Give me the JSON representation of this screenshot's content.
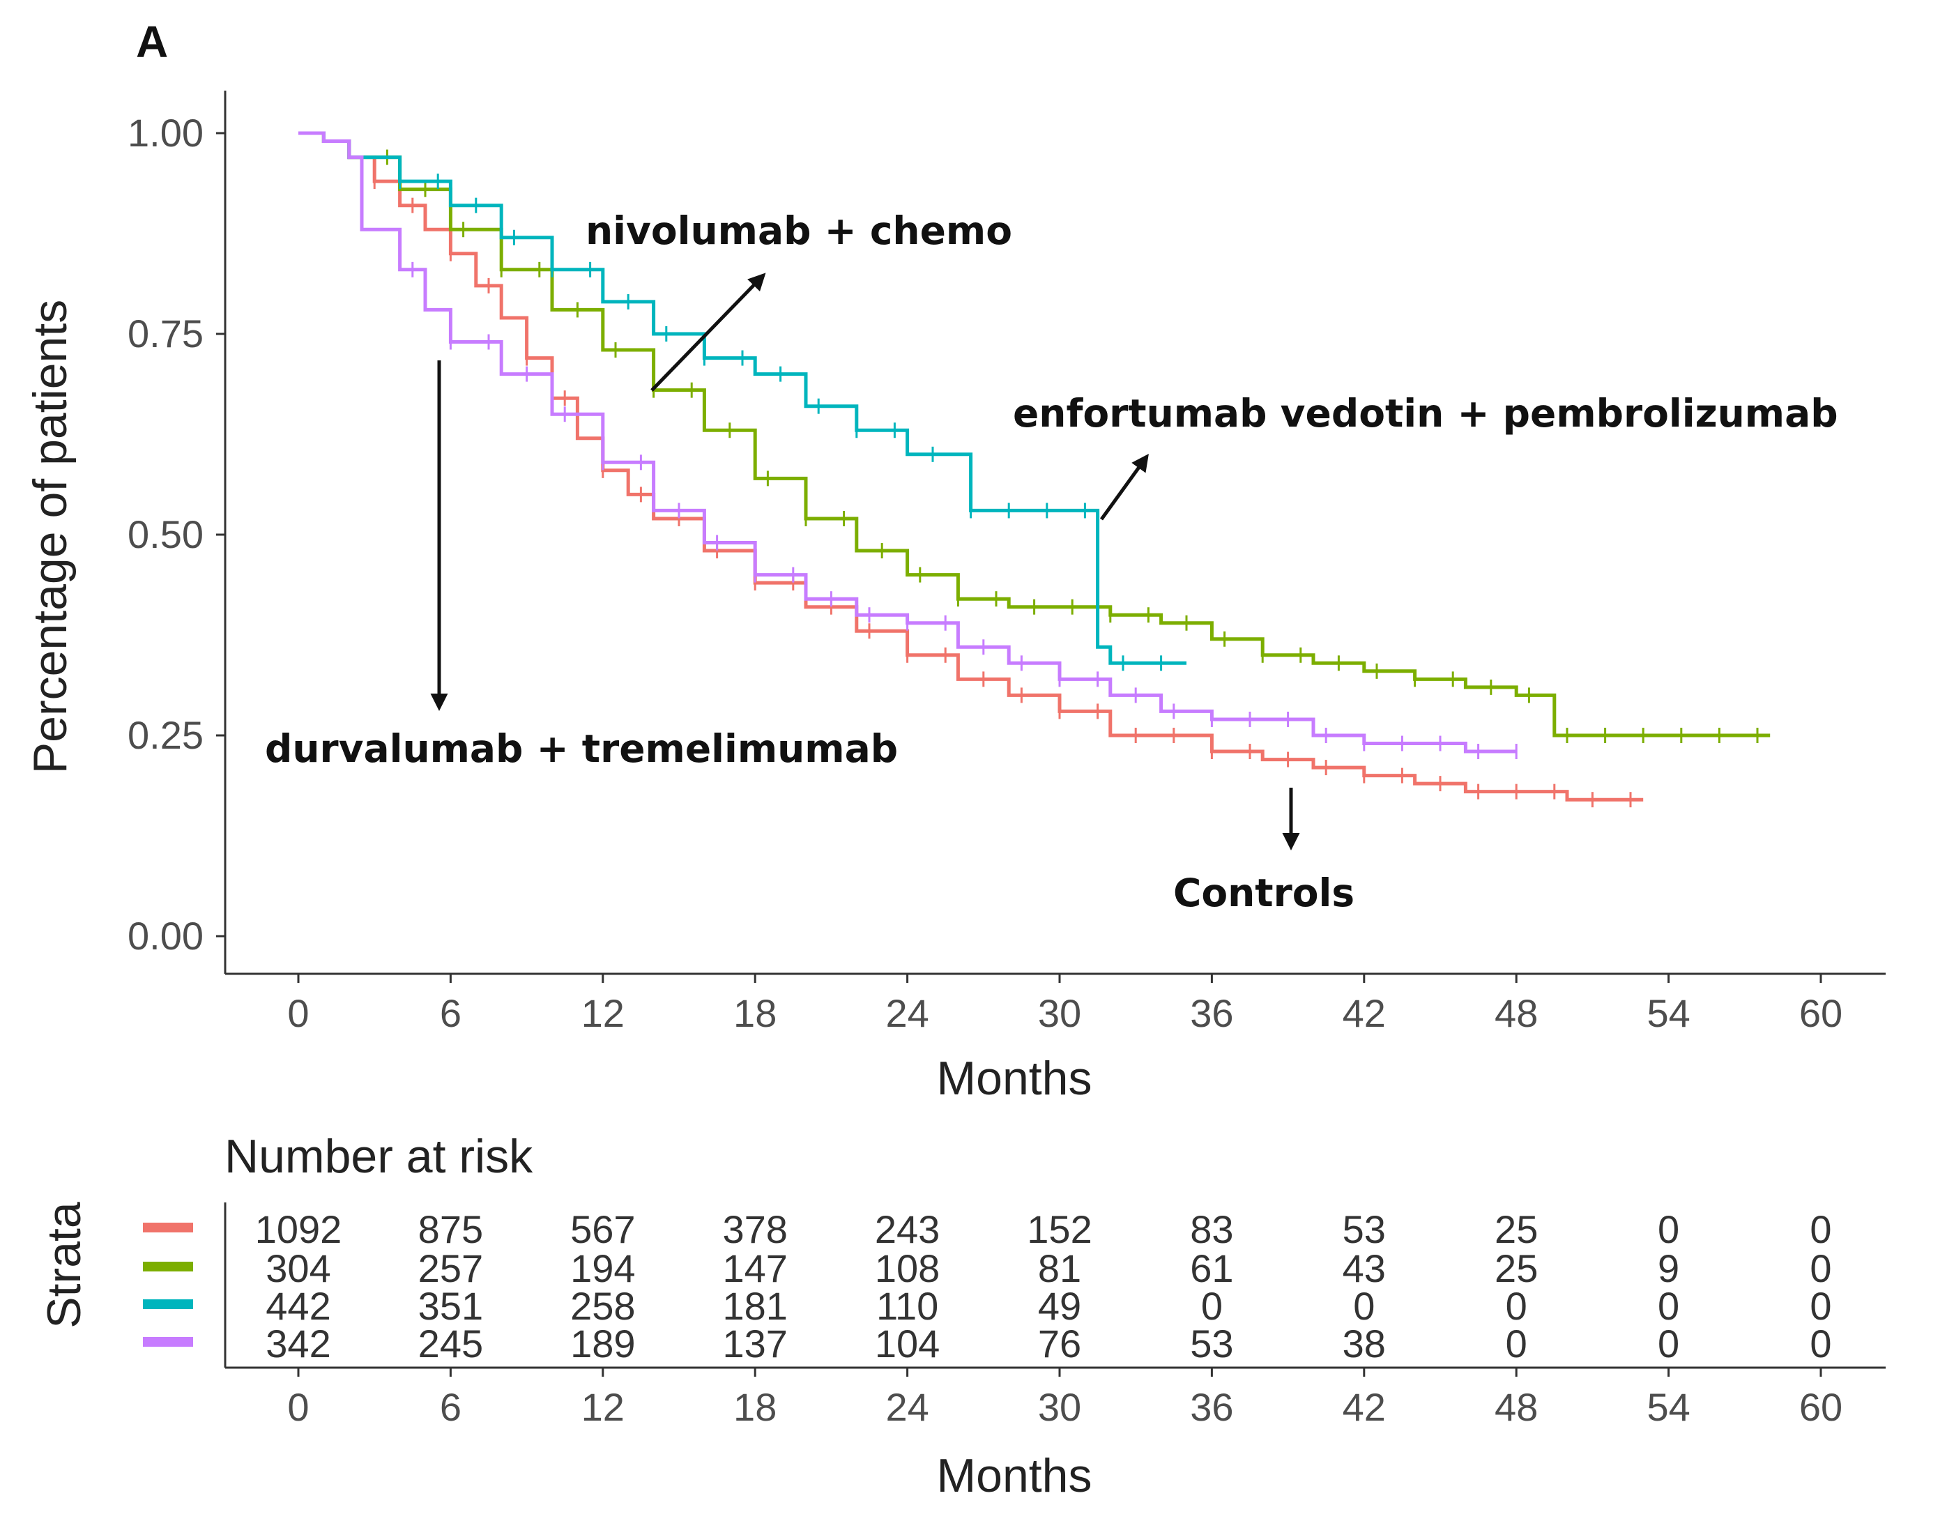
{
  "panel_label": "A",
  "chart_data": {
    "type": "line",
    "subtype": "kaplan-meier",
    "title": "",
    "xlabel": "Months",
    "ylabel": "Percentage of patients",
    "xlim": [
      0,
      60
    ],
    "ylim": [
      0,
      1
    ],
    "xticks": [
      0,
      6,
      12,
      18,
      24,
      30,
      36,
      42,
      48,
      54,
      60
    ],
    "yticks": [
      "0.00",
      "0.25",
      "0.50",
      "0.75",
      "1.00"
    ],
    "series": [
      {
        "name": "Controls",
        "color": "#f0736a",
        "points": [
          [
            0,
            1
          ],
          [
            1,
            0.99
          ],
          [
            2,
            0.97
          ],
          [
            3,
            0.94
          ],
          [
            4,
            0.91
          ],
          [
            5,
            0.88
          ],
          [
            6,
            0.85
          ],
          [
            7,
            0.81
          ],
          [
            8,
            0.77
          ],
          [
            9,
            0.72
          ],
          [
            10,
            0.67
          ],
          [
            11,
            0.62
          ],
          [
            12,
            0.58
          ],
          [
            13,
            0.55
          ],
          [
            14,
            0.52
          ],
          [
            16,
            0.48
          ],
          [
            18,
            0.44
          ],
          [
            20,
            0.41
          ],
          [
            22,
            0.38
          ],
          [
            24,
            0.35
          ],
          [
            26,
            0.32
          ],
          [
            28,
            0.3
          ],
          [
            30,
            0.28
          ],
          [
            32,
            0.25
          ],
          [
            34,
            0.25
          ],
          [
            36,
            0.23
          ],
          [
            38,
            0.22
          ],
          [
            40,
            0.21
          ],
          [
            42,
            0.2
          ],
          [
            44,
            0.19
          ],
          [
            46,
            0.18
          ],
          [
            48,
            0.18
          ],
          [
            50,
            0.17
          ],
          [
            53,
            0.17
          ]
        ]
      },
      {
        "name": "enfortumab vedotin + pembrolizumab",
        "color": "#7cae00",
        "points": [
          [
            0,
            1
          ],
          [
            1,
            0.99
          ],
          [
            2,
            0.97
          ],
          [
            4,
            0.93
          ],
          [
            6,
            0.88
          ],
          [
            8,
            0.83
          ],
          [
            10,
            0.78
          ],
          [
            12,
            0.73
          ],
          [
            14,
            0.68
          ],
          [
            16,
            0.63
          ],
          [
            18,
            0.57
          ],
          [
            20,
            0.52
          ],
          [
            22,
            0.48
          ],
          [
            24,
            0.45
          ],
          [
            26,
            0.42
          ],
          [
            28,
            0.41
          ],
          [
            30,
            0.41
          ],
          [
            32,
            0.4
          ],
          [
            34,
            0.39
          ],
          [
            36,
            0.37
          ],
          [
            38,
            0.35
          ],
          [
            40,
            0.34
          ],
          [
            42,
            0.33
          ],
          [
            44,
            0.32
          ],
          [
            46,
            0.31
          ],
          [
            48,
            0.3
          ],
          [
            49.5,
            0.25
          ],
          [
            58,
            0.25
          ]
        ]
      },
      {
        "name": "nivolumab + chemo",
        "color": "#00b5bd",
        "points": [
          [
            0,
            1
          ],
          [
            1,
            0.99
          ],
          [
            2,
            0.97
          ],
          [
            4,
            0.94
          ],
          [
            6,
            0.91
          ],
          [
            8,
            0.87
          ],
          [
            10,
            0.83
          ],
          [
            12,
            0.79
          ],
          [
            14,
            0.75
          ],
          [
            16,
            0.72
          ],
          [
            18,
            0.7
          ],
          [
            20,
            0.66
          ],
          [
            22,
            0.63
          ],
          [
            24,
            0.6
          ],
          [
            26.5,
            0.58
          ],
          [
            26.5,
            0.53
          ],
          [
            31.5,
            0.53
          ],
          [
            31.5,
            0.36
          ],
          [
            32,
            0.34
          ],
          [
            35,
            0.34
          ]
        ]
      },
      {
        "name": "durvalumab + tremelimumab",
        "color": "#c77cff",
        "points": [
          [
            0,
            1
          ],
          [
            1,
            0.99
          ],
          [
            2,
            0.97
          ],
          [
            2.5,
            0.96
          ],
          [
            2.5,
            0.88
          ],
          [
            4,
            0.83
          ],
          [
            5,
            0.78
          ],
          [
            6,
            0.74
          ],
          [
            8,
            0.7
          ],
          [
            10,
            0.65
          ],
          [
            12,
            0.59
          ],
          [
            14,
            0.53
          ],
          [
            16,
            0.49
          ],
          [
            18,
            0.45
          ],
          [
            20,
            0.42
          ],
          [
            22,
            0.4
          ],
          [
            24,
            0.39
          ],
          [
            26,
            0.36
          ],
          [
            28,
            0.34
          ],
          [
            30,
            0.32
          ],
          [
            32,
            0.3
          ],
          [
            34,
            0.28
          ],
          [
            36,
            0.27
          ],
          [
            38,
            0.27
          ],
          [
            40,
            0.25
          ],
          [
            42,
            0.24
          ],
          [
            44,
            0.24
          ],
          [
            46,
            0.23
          ],
          [
            48,
            0.23
          ]
        ]
      }
    ],
    "annotations": [
      {
        "text": "nivolumab + chemo",
        "target": "nivolumab + chemo"
      },
      {
        "text": "enfortumab  vedotin + pembrolizumab",
        "target": "enfortumab vedotin + pembrolizumab"
      },
      {
        "text": "durvalumab  + tremelimumab",
        "target": "durvalumab + tremelimumab"
      },
      {
        "text": "Controls",
        "target": "Controls"
      }
    ],
    "risk_table": {
      "title": "Number at risk",
      "ylabel": "Strata",
      "xlabel": "Months",
      "times": [
        0,
        6,
        12,
        18,
        24,
        30,
        36,
        42,
        48,
        54,
        60
      ],
      "rows": [
        {
          "color": "#f0736a",
          "values": [
            "1092",
            "875",
            "567",
            "378",
            "243",
            "152",
            "83",
            "53",
            "25",
            "0",
            "0"
          ]
        },
        {
          "color": "#7cae00",
          "values": [
            "304",
            "257",
            "194",
            "147",
            "108",
            "81",
            "61",
            "43",
            "25",
            "9",
            "0"
          ]
        },
        {
          "color": "#00b5bd",
          "values": [
            "442",
            "351",
            "258",
            "181",
            "110",
            "49",
            "0",
            "0",
            "0",
            "0",
            "0"
          ]
        },
        {
          "color": "#c77cff",
          "values": [
            "342",
            "245",
            "189",
            "137",
            "104",
            "76",
            "53",
            "38",
            "0",
            "0",
            "0"
          ]
        }
      ]
    }
  }
}
